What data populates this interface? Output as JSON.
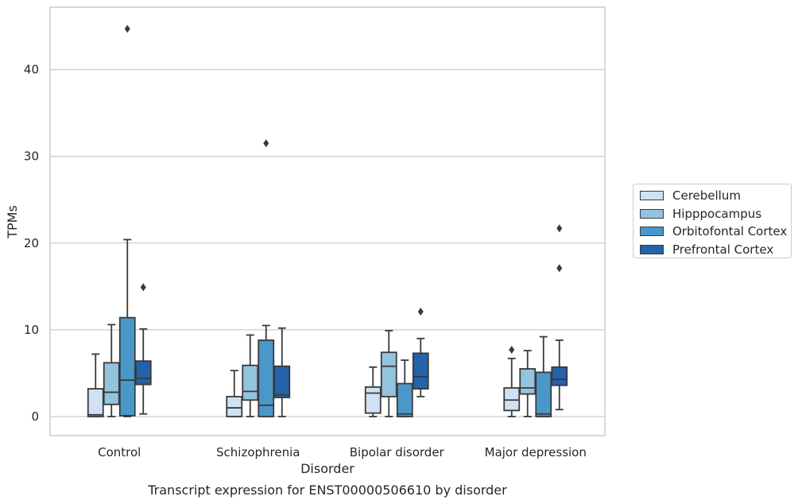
{
  "caption": "Transcript expression for ENST00000506610 by disorder",
  "colors": {
    "Cerebellum": "#cfe1f2",
    "Hipppocampus": "#93c4de",
    "Orbitofontal Cortex": "#4a98c9",
    "Prefrontal Cortex": "#2363a9",
    "grid": "#cccccc",
    "outline": "#3a3a3a"
  },
  "chart_data": {
    "type": "box",
    "xlabel": "Disorder",
    "ylabel": "TPMs",
    "categories": [
      "Control",
      "Schizophrenia",
      "Bipolar disorder",
      "Major depression"
    ],
    "ylim": [
      -2.2,
      47.2
    ],
    "yticks": [
      0,
      10,
      20,
      30,
      40
    ],
    "grid": "horizontal",
    "legend_position": "right",
    "series": [
      {
        "name": "Cerebellum",
        "boxes": [
          {
            "whislo": 0,
            "q1": 0,
            "med": 0.2,
            "q3": 3.2,
            "whishi": 7.2,
            "fliers": []
          },
          {
            "whislo": 0,
            "q1": 0,
            "med": 1.0,
            "q3": 2.3,
            "whishi": 5.3,
            "fliers": []
          },
          {
            "whislo": 0,
            "q1": 0.4,
            "med": 2.7,
            "q3": 3.4,
            "whishi": 5.7,
            "fliers": []
          },
          {
            "whislo": 0,
            "q1": 0.7,
            "med": 1.9,
            "q3": 3.3,
            "whishi": 6.7,
            "fliers": [
              7.7
            ]
          }
        ]
      },
      {
        "name": "Hipppocampus",
        "boxes": [
          {
            "whislo": 0,
            "q1": 1.4,
            "med": 2.8,
            "q3": 6.2,
            "whishi": 10.6,
            "fliers": []
          },
          {
            "whislo": 0,
            "q1": 1.9,
            "med": 2.9,
            "q3": 5.9,
            "whishi": 9.4,
            "fliers": []
          },
          {
            "whislo": 0,
            "q1": 2.3,
            "med": 5.8,
            "q3": 7.4,
            "whishi": 9.9,
            "fliers": []
          },
          {
            "whislo": 0,
            "q1": 2.6,
            "med": 3.3,
            "q3": 5.5,
            "whishi": 7.6,
            "fliers": []
          }
        ]
      },
      {
        "name": "Orbitofontal Cortex",
        "boxes": [
          {
            "whislo": 0,
            "q1": 0.1,
            "med": 4.2,
            "q3": 11.4,
            "whishi": 20.4,
            "fliers": [
              44.7
            ]
          },
          {
            "whislo": 0,
            "q1": 0,
            "med": 1.3,
            "q3": 8.8,
            "whishi": 10.5,
            "fliers": [
              31.5
            ]
          },
          {
            "whislo": 0,
            "q1": 0,
            "med": 0.3,
            "q3": 3.8,
            "whishi": 6.5,
            "fliers": []
          },
          {
            "whislo": 0,
            "q1": 0,
            "med": 0.3,
            "q3": 5.1,
            "whishi": 9.2,
            "fliers": []
          }
        ]
      },
      {
        "name": "Prefrontal Cortex",
        "boxes": [
          {
            "whislo": 0.3,
            "q1": 3.7,
            "med": 4.4,
            "q3": 6.4,
            "whishi": 10.1,
            "fliers": [
              14.9
            ]
          },
          {
            "whislo": 0,
            "q1": 2.2,
            "med": 2.5,
            "q3": 5.8,
            "whishi": 10.2,
            "fliers": []
          },
          {
            "whislo": 2.3,
            "q1": 3.2,
            "med": 4.6,
            "q3": 7.3,
            "whishi": 9.0,
            "fliers": [
              12.1
            ]
          },
          {
            "whislo": 0.8,
            "q1": 3.6,
            "med": 4.3,
            "q3": 5.7,
            "whishi": 8.8,
            "fliers": [
              17.1,
              21.7
            ]
          }
        ]
      }
    ]
  }
}
